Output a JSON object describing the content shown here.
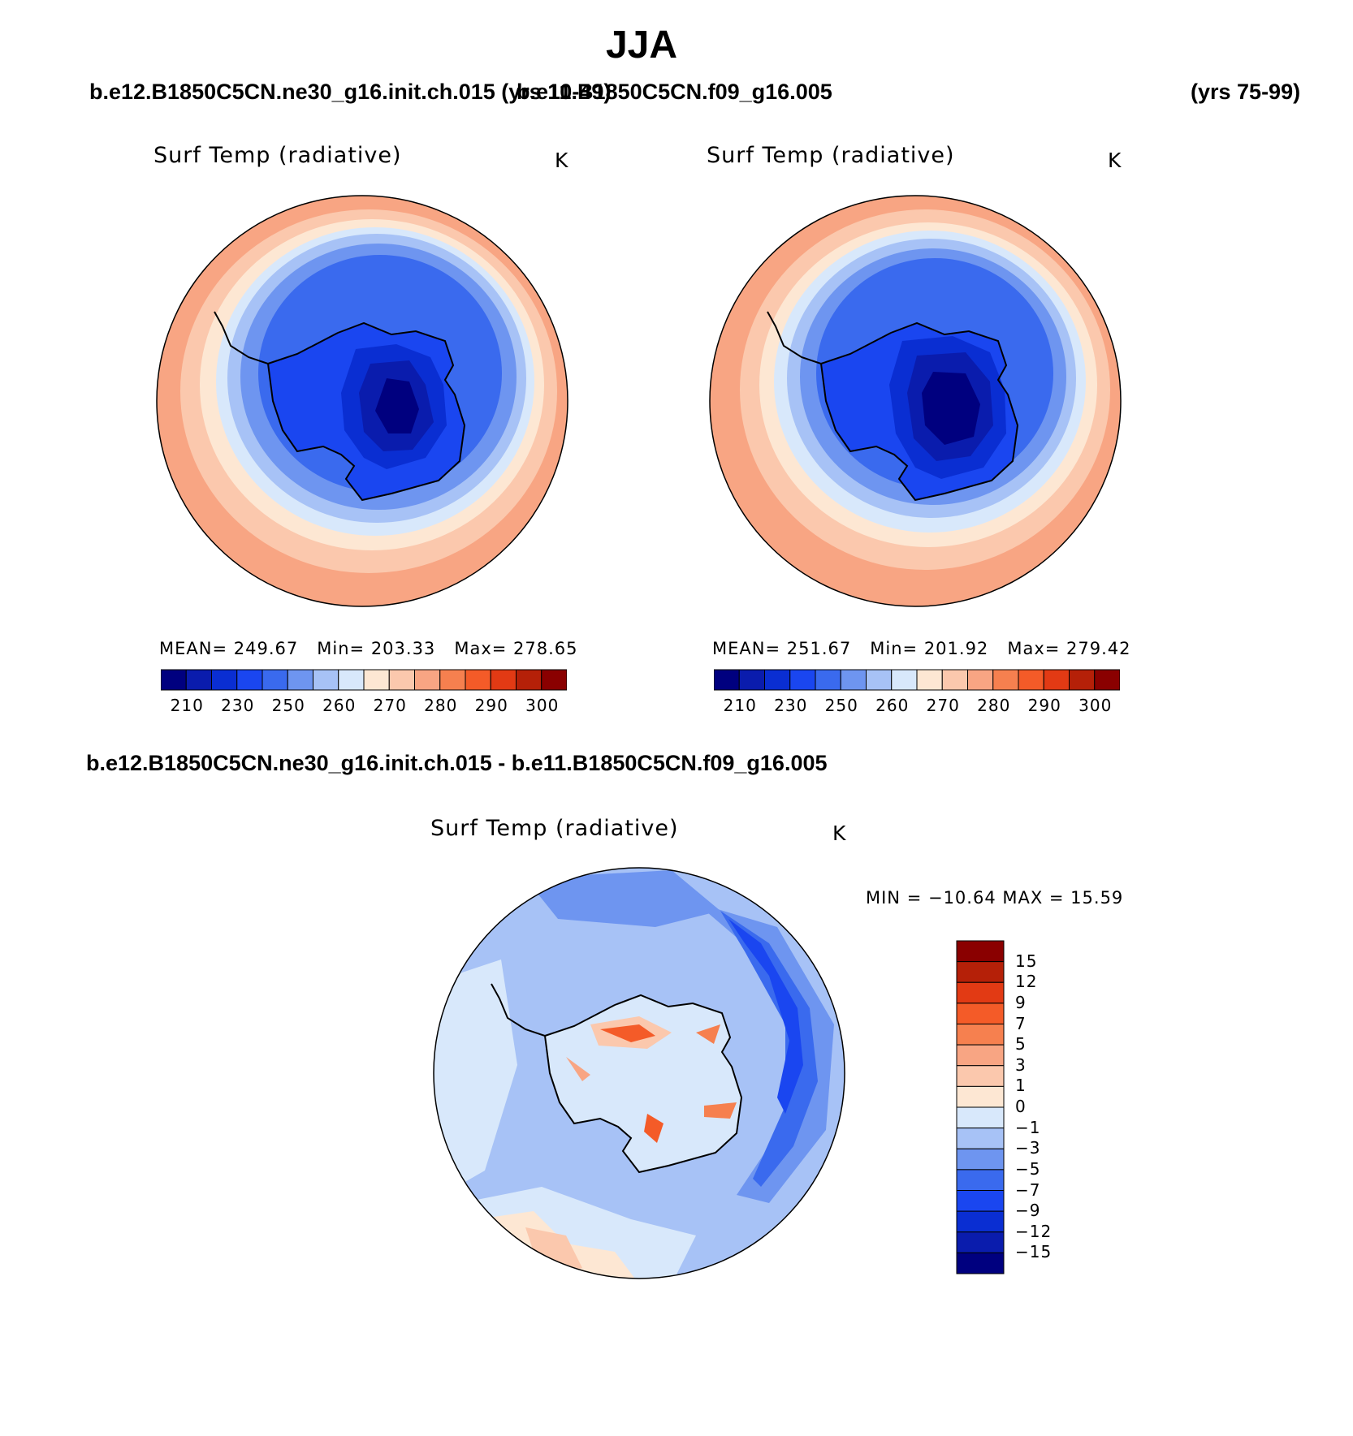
{
  "title": "JJA",
  "case_left": "b.e12.B1850C5CN.ne30_g16.init.ch.015 (yrs 10-49)",
  "case_right": "b.e11.B1850C5CN.f09_g16.005",
  "case_right_years": "(yrs 75-99)",
  "diff_title": "b.e12.B1850C5CN.ne30_g16.init.ch.015 - b.e11.B1850C5CN.f09_g16.005",
  "colors": {
    "abs_scale": [
      "#00007f",
      "#0a1cad",
      "#0a2ed2",
      "#1a46f0",
      "#3a6aee",
      "#6e95f0",
      "#a7c2f6",
      "#d8e8fb",
      "#fde7d3",
      "#fbc8ad",
      "#f8a583",
      "#f6804f",
      "#f45b28",
      "#e23a14",
      "#b52008",
      "#8a0000"
    ],
    "diff_scale": [
      "#00007f",
      "#0a1cad",
      "#0a2ed2",
      "#1a46f0",
      "#3a6aee",
      "#6e95f0",
      "#a7c2f6",
      "#d8e8fb",
      "#fde7d3",
      "#fbc8ad",
      "#f8a583",
      "#f6804f",
      "#f45b28",
      "#e23a14",
      "#b52008",
      "#8a0000"
    ]
  },
  "panels": [
    {
      "field": "Surf Temp (radiative)",
      "units": "K",
      "mean_label": "MEAN=",
      "mean": "249.67",
      "min_label": "Min=",
      "min": "203.33",
      "max_label": "Max=",
      "max": "278.65",
      "colorbar_ticks": [
        "210",
        "230",
        "250",
        "260",
        "270",
        "280",
        "290",
        "300"
      ]
    },
    {
      "field": "Surf Temp (radiative)",
      "units": "K",
      "mean_label": "MEAN=",
      "mean": "251.67",
      "min_label": "Min=",
      "min": "201.92",
      "max_label": "Max=",
      "max": "279.42",
      "colorbar_ticks": [
        "210",
        "230",
        "250",
        "260",
        "270",
        "280",
        "290",
        "300"
      ]
    }
  ],
  "diff_panel": {
    "field": "Surf Temp (radiative)",
    "units": "K",
    "minmax": "MIN = −10.64 MAX =   15.59",
    "colorbar_ticks": [
      "15",
      "12",
      "9",
      "7",
      "5",
      "3",
      "1",
      "0",
      "−1",
      "−3",
      "−5",
      "−7",
      "−9",
      "−12",
      "−15"
    ]
  }
}
